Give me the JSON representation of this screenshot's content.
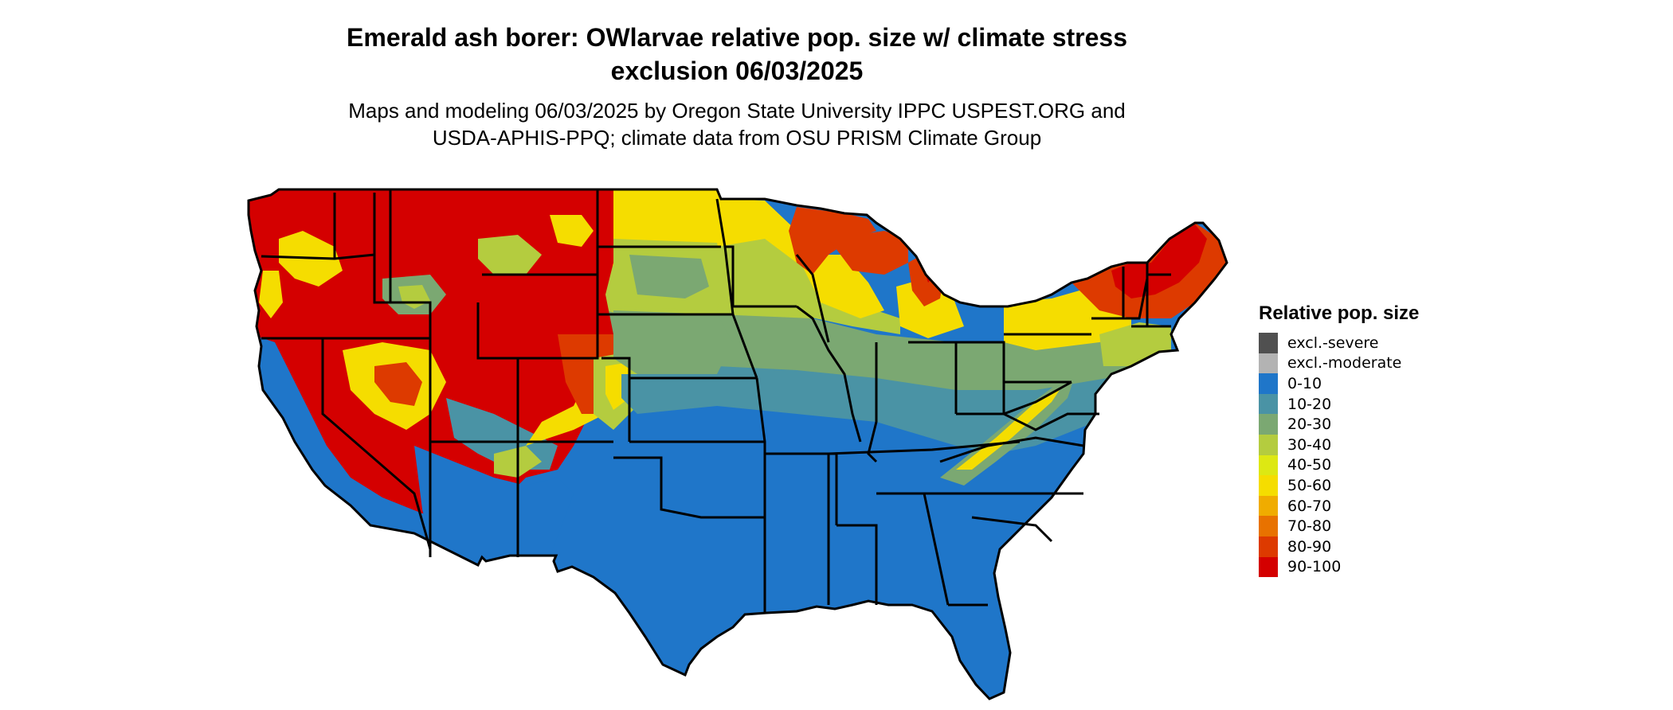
{
  "header": {
    "title_line1": "Emerald ash borer: OWlarvae relative pop. size w/ climate stress",
    "title_line2": "exclusion 06/03/2025",
    "subtitle_line1": "Maps and modeling 06/03/2025 by Oregon State University IPPC USPEST.ORG and",
    "subtitle_line2": "USDA-APHIS-PPQ; climate data from OSU PRISM Climate Group"
  },
  "legend": {
    "title": "Relative pop. size",
    "items": [
      {
        "label": "excl.-severe",
        "color": "#505050"
      },
      {
        "label": "excl.-moderate",
        "color": "#b3b3b3"
      },
      {
        "label": "0-10",
        "color": "#1f76c9"
      },
      {
        "label": "10-20",
        "color": "#4a93a5"
      },
      {
        "label": "20-30",
        "color": "#7ba872"
      },
      {
        "label": "30-40",
        "color": "#b4cc3f"
      },
      {
        "label": "40-50",
        "color": "#dde813"
      },
      {
        "label": "50-60",
        "color": "#f5dd00"
      },
      {
        "label": "60-70",
        "color": "#f0ac00"
      },
      {
        "label": "70-80",
        "color": "#e87200"
      },
      {
        "label": "80-90",
        "color": "#dd3a00"
      },
      {
        "label": "90-100",
        "color": "#d40000"
      }
    ]
  }
}
